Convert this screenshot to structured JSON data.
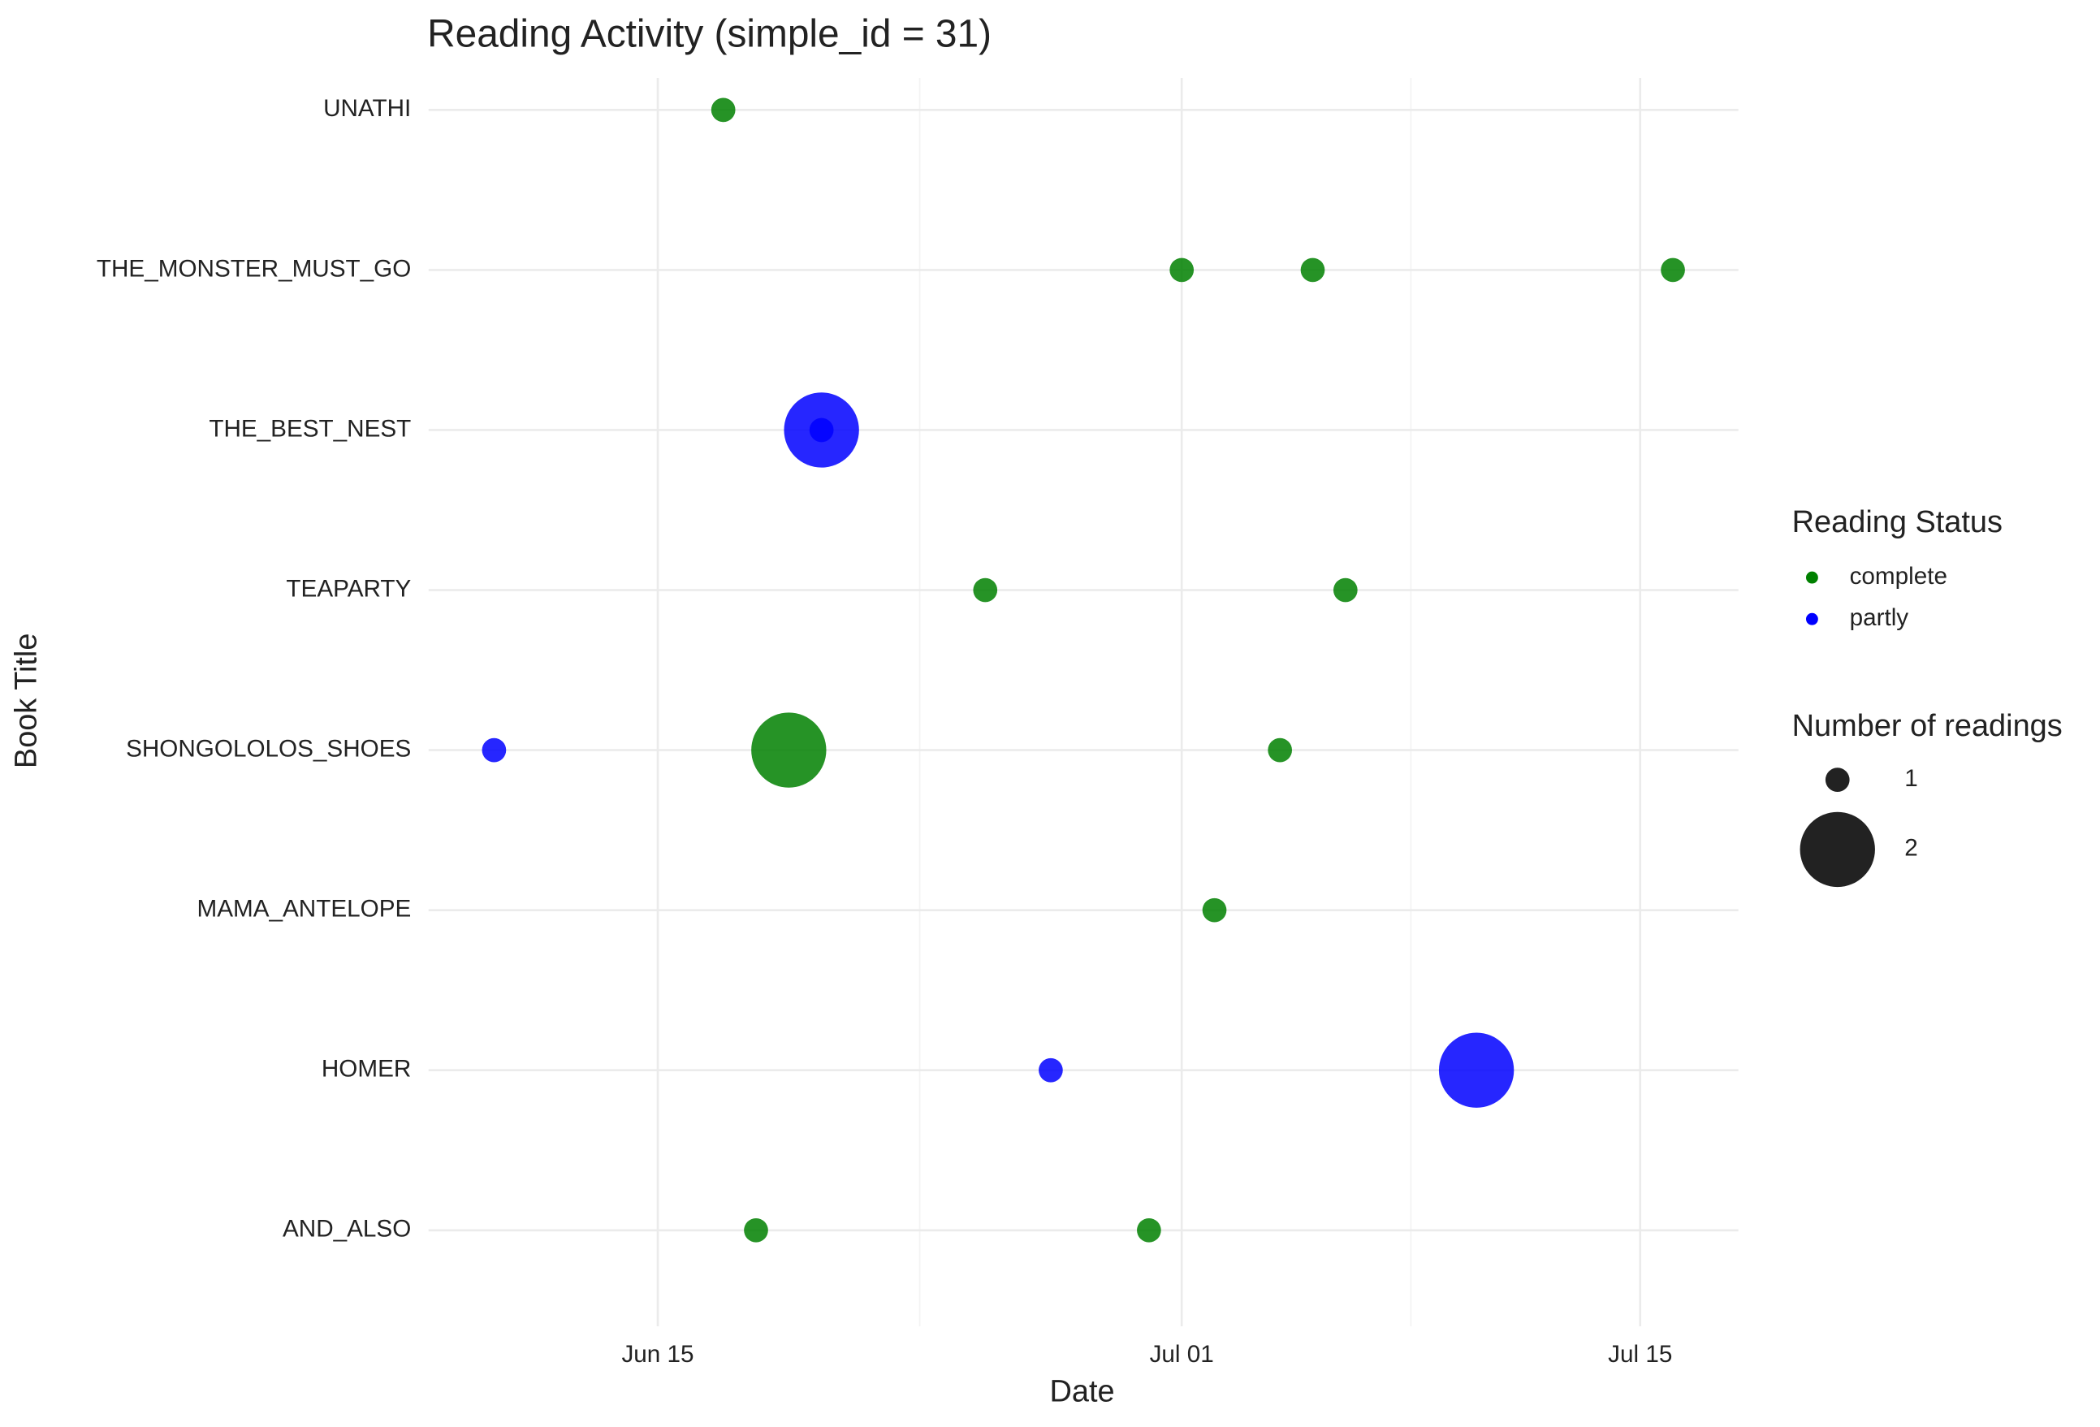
{
  "chart_data": {
    "type": "scatter",
    "title": "Reading Activity (simple_id = 31)",
    "x_label": "Date",
    "y_label": "Book Title",
    "categories": [
      "AND_ALSO",
      "HOMER",
      "MAMA_ANTELOPE",
      "SHONGOLOLOS_SHOES",
      "TEAPARTY",
      "THE_BEST_NEST",
      "THE_MONSTER_MUST_GO",
      "UNATHI"
    ],
    "xlim": [
      "06-08",
      "07-18"
    ],
    "xticks": [
      {
        "value": "06-15",
        "label": "Jun 15"
      },
      {
        "value": "07-01",
        "label": "Jul 01"
      },
      {
        "value": "07-15",
        "label": "Jul 15"
      }
    ],
    "grid": true,
    "legend_title": "Reading Status",
    "size_legend": {
      "title": "Number of readings",
      "values": [
        1,
        2
      ]
    },
    "series": [
      {
        "name": "complete",
        "color": "#008000",
        "x": [
          "06-17",
          "07-01",
          "07-05",
          "07-16",
          "06-25",
          "07-06",
          "06-19",
          "07-04",
          "07-02",
          "06-18",
          "06-30"
        ],
        "y": [
          "UNATHI",
          "THE_MONSTER_MUST_GO",
          "THE_MONSTER_MUST_GO",
          "THE_MONSTER_MUST_GO",
          "TEAPARTY",
          "TEAPARTY",
          "SHONGOLOLOS_SHOES",
          "SHONGOLOLOS_SHOES",
          "MAMA_ANTELOPE",
          "AND_ALSO",
          "AND_ALSO"
        ],
        "sizes": [
          1,
          1,
          1,
          1,
          1,
          1,
          2,
          1,
          1,
          1,
          1
        ]
      },
      {
        "name": "partly",
        "color": "#0000ff",
        "x": [
          "06-20",
          "06-20",
          "06-10",
          "06-27",
          "07-10"
        ],
        "y": [
          "THE_BEST_NEST",
          "THE_BEST_NEST",
          "SHONGOLOLOS_SHOES",
          "HOMER",
          "HOMER"
        ],
        "sizes": [
          2,
          1,
          1,
          1,
          2
        ]
      }
    ]
  }
}
